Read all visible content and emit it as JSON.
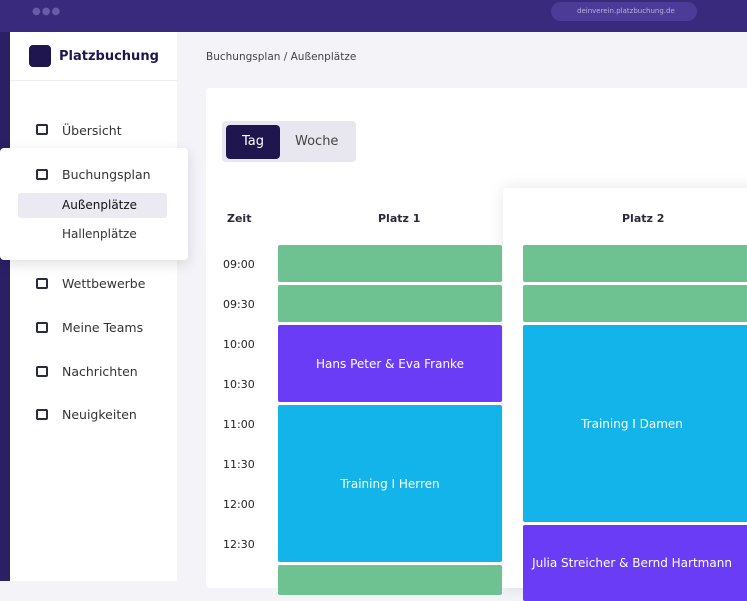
{
  "browser": {
    "url": "deinverein.platzbuchung.de"
  },
  "sidebar": {
    "brand": "Platzbuchung",
    "nav": [
      "Übersicht",
      "Buchungsplan",
      "Außenplätze",
      "Hallenplätze",
      "Wettbewerbe",
      "Meine Teams",
      "Nachrichten",
      "Neuigkeiten"
    ]
  },
  "breadcrumb": "Buchungsplan / Außenplätze",
  "toggle": [
    "Tag",
    "Woche"
  ],
  "schedule": {
    "time_header": "Zeit",
    "courts": [
      "Platz 1",
      "Platz 2"
    ],
    "times": [
      "09:00",
      "09:30",
      "10:00",
      "10:30",
      "11:00",
      "11:30",
      "12:00",
      "12:30"
    ],
    "bookings": [
      [
        "Hans Peter & Eva Franke",
        "Training I Herren"
      ],
      [
        "Training I Damen",
        "Julia Streicher & Bernd Hartmann"
      ]
    ]
  }
}
